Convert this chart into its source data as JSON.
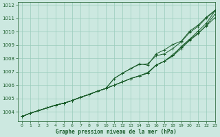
{
  "xlabel": "Graphe pression niveau de la mer (hPa)",
  "xlim": [
    -0.5,
    23
  ],
  "ylim": [
    1003.3,
    1012.2
  ],
  "yticks": [
    1004,
    1005,
    1006,
    1007,
    1008,
    1009,
    1010,
    1011,
    1012
  ],
  "xticks": [
    0,
    1,
    2,
    3,
    4,
    5,
    6,
    7,
    8,
    9,
    10,
    11,
    12,
    13,
    14,
    15,
    16,
    17,
    18,
    19,
    20,
    21,
    22,
    23
  ],
  "bg_color": "#cce8e0",
  "grid_color": "#99ccbb",
  "line_color": "#1a5c2a",
  "lines": [
    [
      1003.65,
      1003.9,
      1004.1,
      1004.3,
      1004.5,
      1004.65,
      1004.85,
      1005.1,
      1005.3,
      1005.55,
      1005.75,
      1006.0,
      1006.25,
      1006.5,
      1006.7,
      1006.95,
      1007.5,
      1007.8,
      1008.3,
      1008.85,
      1009.4,
      1009.9,
      1010.45,
      1011.05
    ],
    [
      1003.65,
      1003.9,
      1004.1,
      1004.3,
      1004.5,
      1004.65,
      1004.85,
      1005.1,
      1005.3,
      1005.55,
      1005.75,
      1006.5,
      1006.9,
      1007.25,
      1007.55,
      1007.6,
      1008.2,
      1008.35,
      1008.75,
      1009.25,
      1009.95,
      1010.4,
      1011.05,
      1011.55
    ],
    [
      1003.65,
      1003.9,
      1004.1,
      1004.3,
      1004.5,
      1004.65,
      1004.85,
      1005.1,
      1005.3,
      1005.55,
      1005.75,
      1006.5,
      1006.9,
      1007.25,
      1007.6,
      1007.5,
      1008.35,
      1008.65,
      1009.05,
      1009.3,
      1010.05,
      1010.5,
      1011.1,
      1011.6
    ],
    [
      1003.65,
      1003.9,
      1004.1,
      1004.3,
      1004.5,
      1004.65,
      1004.85,
      1005.1,
      1005.3,
      1005.55,
      1005.75,
      1006.0,
      1006.25,
      1006.5,
      1006.7,
      1006.9,
      1007.5,
      1007.8,
      1008.2,
      1008.9,
      1009.45,
      1010.05,
      1010.65,
      1011.55
    ],
    [
      1003.65,
      1003.9,
      1004.1,
      1004.3,
      1004.5,
      1004.65,
      1004.85,
      1005.1,
      1005.3,
      1005.55,
      1005.75,
      1006.0,
      1006.25,
      1006.5,
      1006.7,
      1006.9,
      1007.5,
      1007.8,
      1008.2,
      1008.75,
      1009.35,
      1009.85,
      1010.5,
      1011.3
    ]
  ]
}
